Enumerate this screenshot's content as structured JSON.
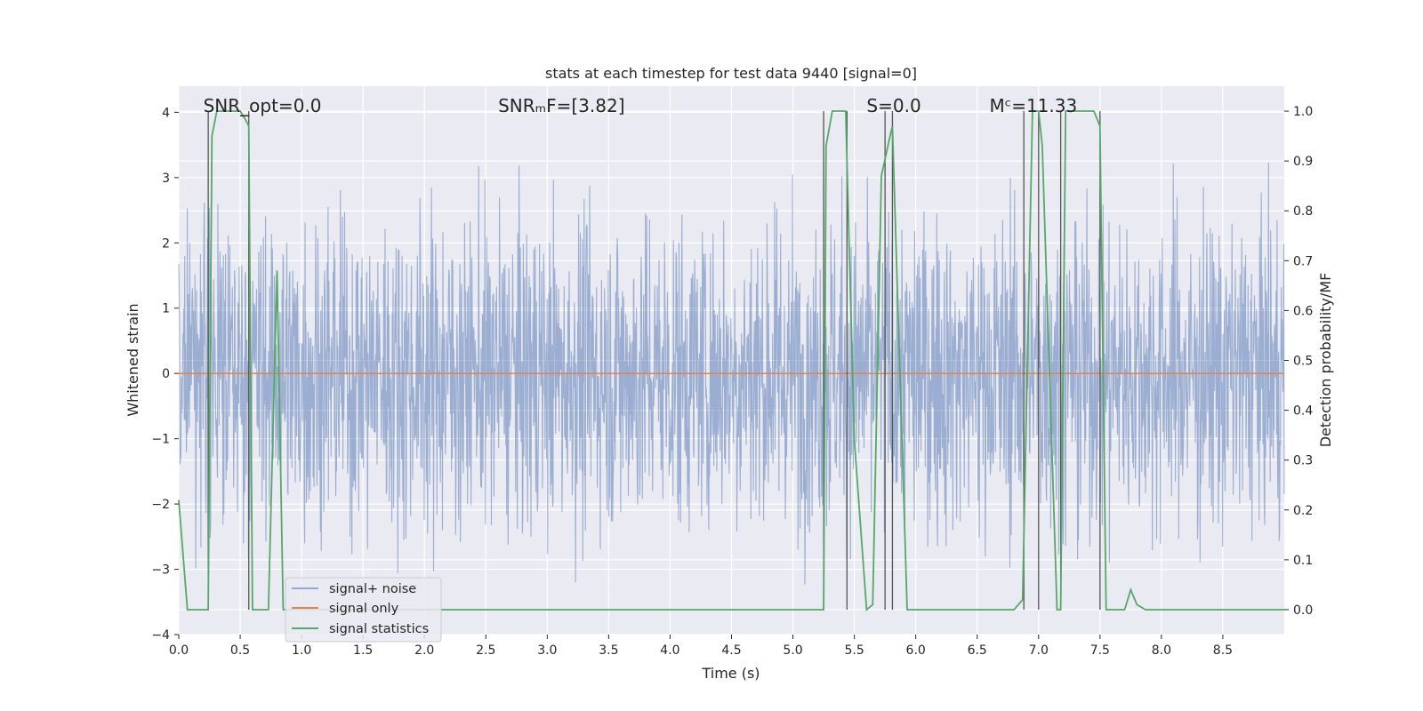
{
  "chart_data": {
    "type": "line",
    "title": "stats at each timestep for test data 9440 [signal=0]",
    "xlabel": "Time (s)",
    "ylabel": "Whitened strain",
    "ylabel_right": "Detection probability/MF",
    "xlim": [
      0.0,
      9.0
    ],
    "ylim": [
      -4.0,
      4.4
    ],
    "ylim_right": [
      -0.05,
      1.05
    ],
    "x_ticks": [
      0.0,
      0.5,
      1.0,
      1.5,
      2.0,
      2.5,
      3.0,
      3.5,
      4.0,
      4.5,
      5.0,
      5.5,
      6.0,
      6.5,
      7.0,
      7.5,
      8.0,
      8.5
    ],
    "x_tick_labels": [
      "0.0",
      "0.5",
      "1.0",
      "1.5",
      "2.0",
      "2.5",
      "3.0",
      "3.5",
      "4.0",
      "4.5",
      "5.0",
      "5.5",
      "6.0",
      "6.5",
      "7.0",
      "7.5",
      "8.0",
      "8.5"
    ],
    "y_ticks": [
      4,
      3,
      2,
      1,
      0,
      -1,
      -2,
      -3,
      -4
    ],
    "y_tick_labels": [
      "4",
      "3",
      "2",
      "1",
      "0",
      "−1",
      "−2",
      "−3",
      "−4"
    ],
    "y_right_ticks": [
      1.0,
      0.9,
      0.8,
      0.7,
      0.6,
      0.5,
      0.4,
      0.3,
      0.2,
      0.1,
      0.0
    ],
    "y_right_tick_labels": [
      "1.0",
      "0.9",
      "0.8",
      "0.7",
      "0.6",
      "0.5",
      "0.4",
      "0.3",
      "0.2",
      "0.1",
      "0.0"
    ],
    "annotations": [
      {
        "text": "SNR_opt=0.0",
        "x": 0.2,
        "y": 4.1
      },
      {
        "text": "SNRₘF=[3.82]",
        "x": 2.6,
        "y": 4.1
      },
      {
        "text": "S=0.0",
        "x": 5.6,
        "y": 4.1
      },
      {
        "text": "Mᶜ=11.33",
        "x": 6.6,
        "y": 4.1
      }
    ],
    "vertical_lines": [
      0.24,
      0.57,
      5.25,
      5.44,
      5.75,
      5.81,
      6.88,
      7.0,
      7.18,
      7.5
    ],
    "series": [
      {
        "name": "signal+ noise",
        "color": "#4c72b0",
        "axis": "left",
        "noise_amplitude": 1.2,
        "peak_range": [
          -3.6,
          4.0
        ]
      },
      {
        "name": "signal only",
        "color": "#dd8452",
        "axis": "left",
        "constant": 0.0
      },
      {
        "name": "signal statistics",
        "color": "#55a868",
        "axis": "right",
        "x": [
          0.0,
          0.07,
          0.15,
          0.24,
          0.27,
          0.31,
          0.5,
          0.55,
          0.57,
          0.6,
          0.65,
          0.73,
          0.8,
          0.85,
          0.9,
          5.25,
          5.27,
          5.32,
          5.36,
          5.43,
          5.44,
          5.5,
          5.6,
          5.65,
          5.72,
          5.8,
          5.81,
          5.93,
          5.98,
          6.8,
          6.87,
          6.95,
          7.0,
          7.03,
          7.15,
          7.18,
          7.22,
          7.45,
          7.5,
          7.55,
          7.7,
          7.75,
          7.8,
          7.87,
          7.9,
          9.0
        ],
        "y": [
          0.22,
          0.0,
          0.0,
          0.0,
          0.95,
          1.0,
          1.0,
          0.98,
          0.97,
          0.0,
          0.0,
          0.0,
          0.68,
          0.0,
          0.0,
          0.0,
          0.93,
          1.0,
          1.0,
          1.0,
          0.9,
          0.34,
          0.0,
          0.01,
          0.87,
          0.96,
          0.97,
          0.0,
          0.0,
          0.0,
          0.02,
          1.0,
          1.0,
          0.93,
          0.0,
          0.0,
          1.0,
          1.0,
          0.97,
          0.0,
          0.0,
          0.04,
          0.01,
          0.0,
          0.0,
          0.0
        ]
      }
    ],
    "legend": {
      "placement": "lower-left",
      "entries": [
        "signal+ noise",
        "signal only",
        "signal statistics"
      ]
    }
  }
}
